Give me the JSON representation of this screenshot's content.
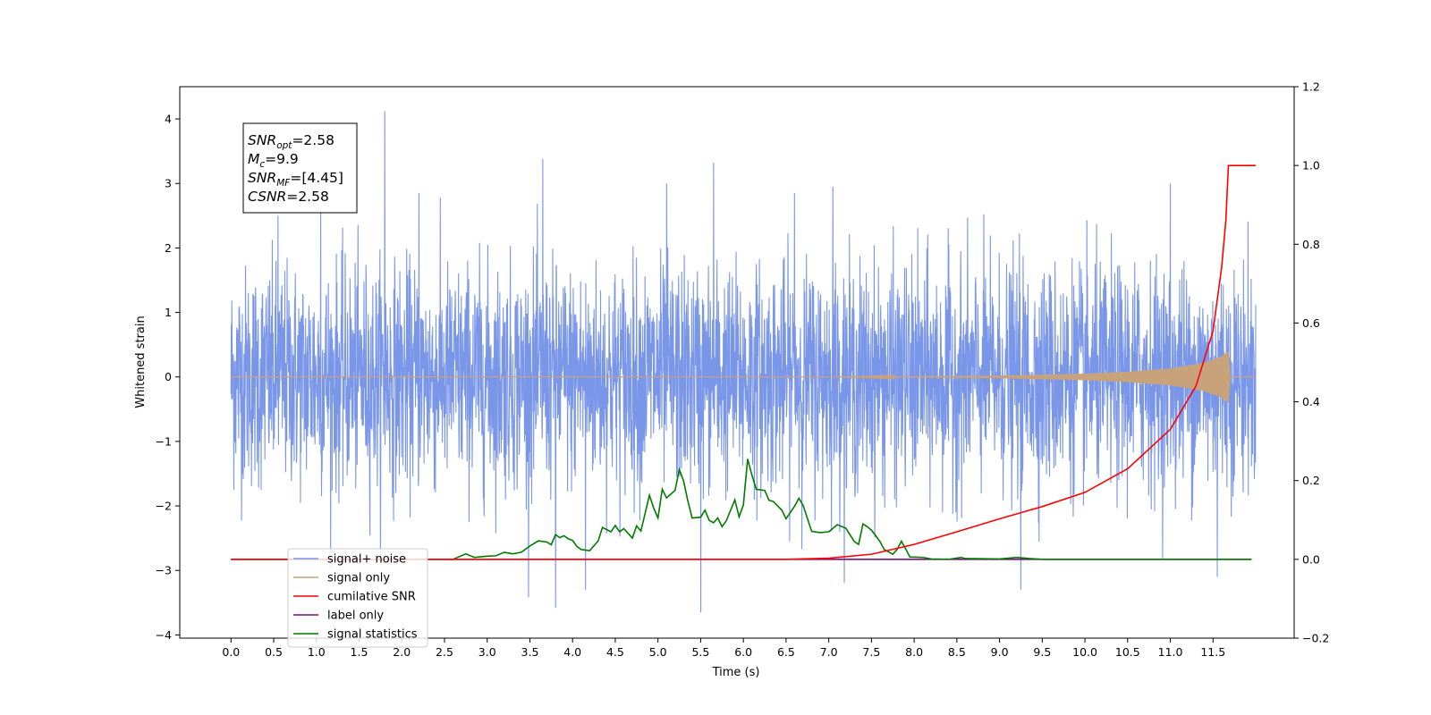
{
  "chart_data": {
    "type": "line",
    "xlabel": "Time (s)",
    "ylabel": "Whitened strain",
    "xlim": [
      -0.6,
      12.45
    ],
    "ylim": [
      -4.05,
      4.5
    ],
    "ylim_right": [
      -0.2,
      1.2
    ],
    "x_ticks": [
      "0.0",
      "0.5",
      "1.0",
      "1.5",
      "2.0",
      "2.5",
      "3.0",
      "3.5",
      "4.0",
      "4.5",
      "5.0",
      "5.5",
      "6.0",
      "6.5",
      "7.0",
      "7.5",
      "8.0",
      "8.5",
      "9.0",
      "9.5",
      "10.0",
      "10.5",
      "11.0",
      "11.5"
    ],
    "y_ticks": [
      "−4",
      "−3",
      "−2",
      "−1",
      "0",
      "1",
      "2",
      "3",
      "4"
    ],
    "y_ticks_right": [
      "−0.2",
      "0.0",
      "0.2",
      "0.4",
      "0.6",
      "0.8",
      "1.0",
      "1.2"
    ],
    "grid": false,
    "legend_position": "bottom-left",
    "annotation": {
      "lines": [
        {
          "base": "SNR",
          "sub": "opt",
          "rest": "=2.58"
        },
        {
          "base": "M",
          "sub": "c",
          "rest": "=9.9"
        },
        {
          "base": "SNR",
          "sub": "MF",
          "rest": "=[4.45]"
        },
        {
          "base": "CSNR",
          "sub": "",
          "rest": "=2.58"
        }
      ]
    },
    "series": [
      {
        "name": "signal+ noise",
        "color": "#7a96e8",
        "axis": "left",
        "t_range": [
          0.0,
          12.0
        ],
        "amplitude_typical": [
          -1.6,
          1.6
        ],
        "amplitude_extremes": [
          -3.65,
          4.12
        ],
        "spikes": [
          [
            0.55,
            2.5
          ],
          [
            1.05,
            2.6
          ],
          [
            1.8,
            4.12
          ],
          [
            2.2,
            2.85
          ],
          [
            3.65,
            3.38
          ],
          [
            3.8,
            -3.58
          ],
          [
            4.15,
            -3.3
          ],
          [
            5.1,
            3.0
          ],
          [
            5.5,
            -3.65
          ],
          [
            5.65,
            3.32
          ],
          [
            6.6,
            2.85
          ],
          [
            7.05,
            2.95
          ],
          [
            9.25,
            -3.3
          ],
          [
            11.0,
            3.0
          ],
          [
            11.55,
            -3.1
          ]
        ]
      },
      {
        "name": "signal only",
        "color": "#c8a27a",
        "axis": "left",
        "envelope": [
          [
            0.0,
            0.0
          ],
          [
            7.0,
            0.0
          ],
          [
            8.0,
            0.01
          ],
          [
            9.0,
            0.02
          ],
          [
            10.0,
            0.05
          ],
          [
            10.5,
            0.08
          ],
          [
            11.0,
            0.13
          ],
          [
            11.4,
            0.22
          ],
          [
            11.6,
            0.32
          ],
          [
            11.68,
            0.4
          ],
          [
            11.7,
            0.0
          ],
          [
            12.0,
            0.0
          ]
        ]
      },
      {
        "name": "cumilative SNR",
        "color": "#ff0000",
        "axis": "right",
        "points": [
          [
            0.0,
            0.0
          ],
          [
            6.5,
            0.0
          ],
          [
            7.0,
            0.003
          ],
          [
            7.5,
            0.013
          ],
          [
            8.0,
            0.038
          ],
          [
            8.5,
            0.07
          ],
          [
            9.0,
            0.103
          ],
          [
            9.5,
            0.134
          ],
          [
            10.0,
            0.17
          ],
          [
            10.5,
            0.23
          ],
          [
            11.0,
            0.33
          ],
          [
            11.3,
            0.44
          ],
          [
            11.5,
            0.58
          ],
          [
            11.6,
            0.74
          ],
          [
            11.65,
            0.86
          ],
          [
            11.68,
            1.0
          ],
          [
            12.0,
            1.0
          ]
        ]
      },
      {
        "name": "label only",
        "color": "#7b0f82",
        "axis": "right",
        "points": [
          [
            0.0,
            0.0
          ],
          [
            11.95,
            0.0
          ]
        ]
      },
      {
        "name": "signal statistics",
        "color": "#007a00",
        "axis": "right",
        "points": [
          [
            0.0,
            0.0
          ],
          [
            2.6,
            0.0
          ],
          [
            2.75,
            0.014
          ],
          [
            2.85,
            0.005
          ],
          [
            3.0,
            0.008
          ],
          [
            3.1,
            0.009
          ],
          [
            3.2,
            0.018
          ],
          [
            3.3,
            0.014
          ],
          [
            3.4,
            0.018
          ],
          [
            3.5,
            0.034
          ],
          [
            3.6,
            0.047
          ],
          [
            3.7,
            0.044
          ],
          [
            3.75,
            0.037
          ],
          [
            3.8,
            0.063
          ],
          [
            3.85,
            0.055
          ],
          [
            3.9,
            0.06
          ],
          [
            3.95,
            0.052
          ],
          [
            4.0,
            0.048
          ],
          [
            4.05,
            0.033
          ],
          [
            4.1,
            0.025
          ],
          [
            4.2,
            0.022
          ],
          [
            4.3,
            0.047
          ],
          [
            4.35,
            0.081
          ],
          [
            4.45,
            0.07
          ],
          [
            4.5,
            0.086
          ],
          [
            4.55,
            0.07
          ],
          [
            4.6,
            0.078
          ],
          [
            4.7,
            0.054
          ],
          [
            4.75,
            0.085
          ],
          [
            4.8,
            0.072
          ],
          [
            4.9,
            0.163
          ],
          [
            4.95,
            0.13
          ],
          [
            5.0,
            0.105
          ],
          [
            5.05,
            0.178
          ],
          [
            5.1,
            0.156
          ],
          [
            5.2,
            0.175
          ],
          [
            5.25,
            0.228
          ],
          [
            5.3,
            0.199
          ],
          [
            5.35,
            0.148
          ],
          [
            5.4,
            0.105
          ],
          [
            5.5,
            0.107
          ],
          [
            5.55,
            0.125
          ],
          [
            5.6,
            0.099
          ],
          [
            5.65,
            0.093
          ],
          [
            5.7,
            0.105
          ],
          [
            5.75,
            0.083
          ],
          [
            5.8,
            0.098
          ],
          [
            5.9,
            0.151
          ],
          [
            5.95,
            0.108
          ],
          [
            6.0,
            0.138
          ],
          [
            6.05,
            0.255
          ],
          [
            6.1,
            0.214
          ],
          [
            6.15,
            0.178
          ],
          [
            6.25,
            0.175
          ],
          [
            6.3,
            0.15
          ],
          [
            6.35,
            0.147
          ],
          [
            6.45,
            0.125
          ],
          [
            6.5,
            0.103
          ],
          [
            6.6,
            0.135
          ],
          [
            6.65,
            0.155
          ],
          [
            6.7,
            0.137
          ],
          [
            6.8,
            0.071
          ],
          [
            6.9,
            0.068
          ],
          [
            7.0,
            0.07
          ],
          [
            7.1,
            0.088
          ],
          [
            7.2,
            0.079
          ],
          [
            7.3,
            0.045
          ],
          [
            7.35,
            0.038
          ],
          [
            7.4,
            0.09
          ],
          [
            7.45,
            0.083
          ],
          [
            7.5,
            0.074
          ],
          [
            7.55,
            0.06
          ],
          [
            7.6,
            0.045
          ],
          [
            7.65,
            0.025
          ],
          [
            7.75,
            0.013
          ],
          [
            7.8,
            0.025
          ],
          [
            7.85,
            0.046
          ],
          [
            7.9,
            0.027
          ],
          [
            7.95,
            0.006
          ],
          [
            8.1,
            0.005
          ],
          [
            8.2,
            0.001
          ],
          [
            8.4,
            0.0
          ],
          [
            8.55,
            0.005
          ],
          [
            8.6,
            0.002
          ],
          [
            9.0,
            0.001
          ],
          [
            9.2,
            0.005
          ],
          [
            9.35,
            0.002
          ],
          [
            9.5,
            0.0
          ],
          [
            11.95,
            0.0
          ]
        ]
      }
    ]
  }
}
